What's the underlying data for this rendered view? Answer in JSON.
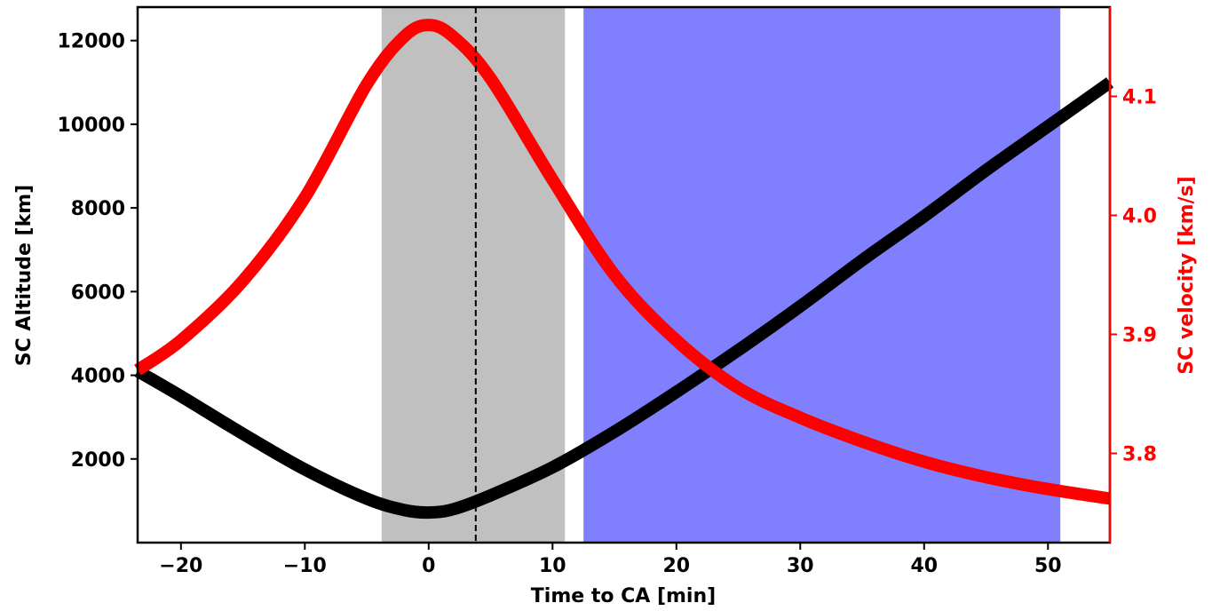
{
  "chart_data": {
    "type": "line",
    "title": "",
    "xlabel": "Time to CA [min]",
    "ylabel_left": "SC Altitude [km]",
    "ylabel_right": "SC velocity [km/s]",
    "xlim": [
      -23.5,
      55
    ],
    "ylim_left": [
      0,
      12800
    ],
    "ylim_right": [
      3.725,
      4.175
    ],
    "x_ticks": [
      -20,
      -10,
      0,
      10,
      20,
      30,
      40,
      50
    ],
    "x_tick_labels": [
      "−20",
      "−10",
      "0",
      "10",
      "20",
      "30",
      "40",
      "50"
    ],
    "y_left_ticks": [
      2000,
      4000,
      6000,
      8000,
      10000,
      12000
    ],
    "y_left_tick_labels": [
      "2000",
      "4000",
      "6000",
      "8000",
      "10000",
      "12000"
    ],
    "y_right_ticks": [
      3.8,
      3.9,
      4.0,
      4.1
    ],
    "y_right_tick_labels": [
      "3.8",
      "3.9",
      "4.0",
      "4.1"
    ],
    "grid": false,
    "shaded_regions": [
      {
        "x_start": -3.8,
        "x_end": 11,
        "color": "#c0c0c0"
      },
      {
        "x_start": 12.5,
        "x_end": 51,
        "color": "#8080ff"
      }
    ],
    "vertical_lines": [
      {
        "x": 3.8,
        "style": "dashed",
        "color": "#000000"
      }
    ],
    "series": [
      {
        "axis": "left",
        "color": "#000000",
        "x": [
          -23.5,
          -20,
          -15,
          -10,
          -5,
          -2,
          0,
          2,
          5,
          10,
          15,
          20,
          25,
          30,
          35,
          40,
          45,
          50,
          55
        ],
        "values": [
          4100,
          3500,
          2600,
          1750,
          1050,
          780,
          720,
          800,
          1130,
          1800,
          2650,
          3600,
          4600,
          5650,
          6750,
          7800,
          8900,
          9950,
          11000
        ]
      },
      {
        "axis": "right",
        "color": "#ff0000",
        "x": [
          -23.5,
          -20,
          -15,
          -10,
          -5,
          -2,
          0,
          2,
          5,
          10,
          15,
          20,
          25,
          30,
          35,
          40,
          45,
          50,
          55
        ],
        "values": [
          3.87,
          3.895,
          3.945,
          4.015,
          4.11,
          4.15,
          4.16,
          4.15,
          4.115,
          4.03,
          3.95,
          3.895,
          3.855,
          3.83,
          3.81,
          3.793,
          3.78,
          3.77,
          3.762
        ]
      }
    ]
  }
}
